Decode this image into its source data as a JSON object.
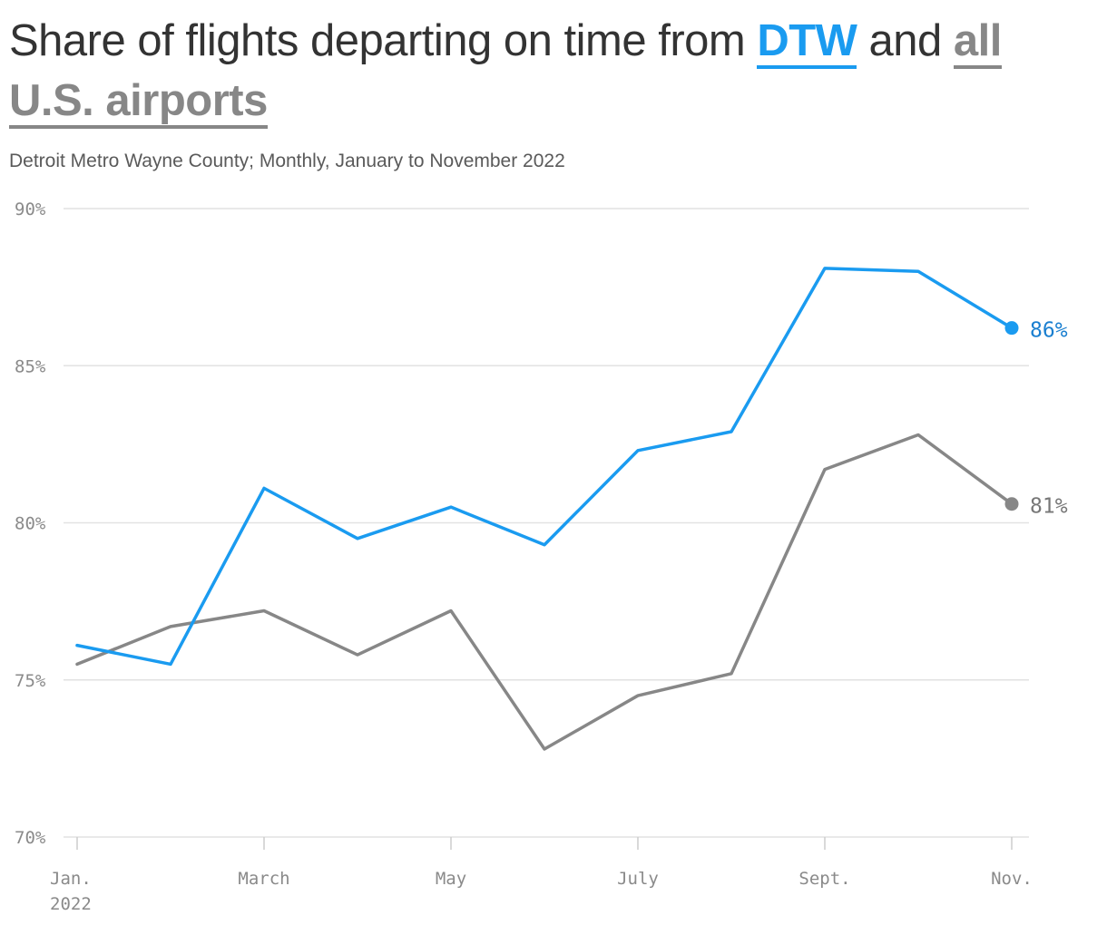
{
  "title": {
    "before": "Share of flights departing on time from ",
    "dtw": "DTW",
    "middle": " and ",
    "all": "all U.S. airports"
  },
  "subtitle": "Detroit Metro Wayne County; Monthly, January to November 2022",
  "colors": {
    "dtw": "#1a9bf0",
    "all": "#878787",
    "grid": "#e2e2e2",
    "text": "#333333"
  },
  "chart_data": {
    "type": "line",
    "title": "Share of flights departing on time from DTW and all U.S. airports",
    "subtitle": "Detroit Metro Wayne County; Monthly, January to November 2022",
    "x": [
      "2022-01",
      "2022-02",
      "2022-03",
      "2022-04",
      "2022-05",
      "2022-06",
      "2022-07",
      "2022-08",
      "2022-09",
      "2022-10",
      "2022-11"
    ],
    "ylim": [
      70,
      90
    ],
    "yticks": [
      70,
      75,
      80,
      85,
      90
    ],
    "ytick_labels": [
      "70%",
      "75%",
      "80%",
      "85%",
      "90%"
    ],
    "xtick_labels": [
      {
        "index": 0,
        "label": "Jan.",
        "sub": "2022"
      },
      {
        "index": 2,
        "label": "March",
        "sub": ""
      },
      {
        "index": 4,
        "label": "May",
        "sub": ""
      },
      {
        "index": 6,
        "label": "July",
        "sub": ""
      },
      {
        "index": 8,
        "label": "Sept.",
        "sub": ""
      },
      {
        "index": 10,
        "label": "Nov.",
        "sub": ""
      }
    ],
    "grid": true,
    "series": [
      {
        "name": "DTW",
        "color": "#1a9bf0",
        "end_label": "86%",
        "values": [
          76.1,
          75.5,
          81.1,
          79.5,
          80.5,
          79.3,
          82.3,
          82.9,
          88.1,
          88.0,
          86.2
        ]
      },
      {
        "name": "all U.S. airports",
        "color": "#878787",
        "end_label": "81%",
        "values": [
          75.5,
          76.7,
          77.2,
          75.8,
          77.2,
          72.8,
          74.5,
          75.2,
          81.7,
          82.8,
          80.6
        ]
      }
    ]
  }
}
